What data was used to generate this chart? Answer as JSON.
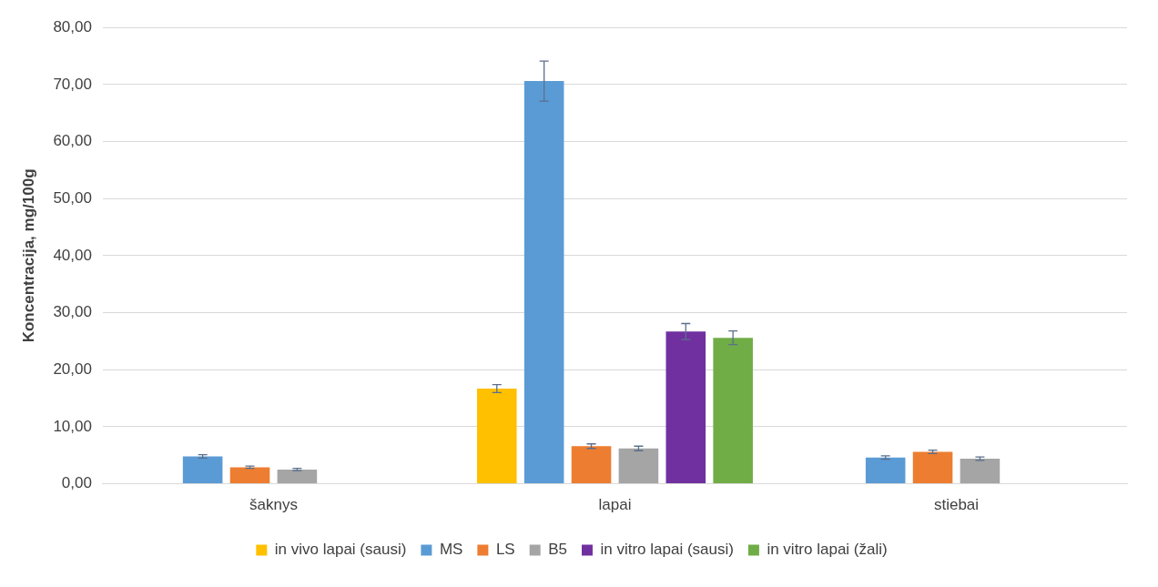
{
  "chart_data": {
    "type": "bar",
    "ylabel": "Koncentracija, mg/100g",
    "categories": [
      "šaknys",
      "lapai",
      "stiebai"
    ],
    "series": [
      {
        "name": "in vivo lapai (sausi)",
        "color": "#ffc000",
        "values": [
          null,
          16.7,
          null
        ],
        "errors": [
          null,
          0.7,
          null
        ]
      },
      {
        "name": "MS",
        "color": "#5b9bd5",
        "values": [
          4.8,
          70.6,
          4.6
        ],
        "errors": [
          0.3,
          3.5,
          0.3
        ]
      },
      {
        "name": "LS",
        "color": "#ed7d31",
        "values": [
          2.9,
          6.6,
          5.6
        ],
        "errors": [
          0.2,
          0.4,
          0.3
        ]
      },
      {
        "name": "B5",
        "color": "#a5a5a5",
        "values": [
          2.5,
          6.2,
          4.4
        ],
        "errors": [
          0.2,
          0.4,
          0.3
        ]
      },
      {
        "name": "in vitro lapai (sausi)",
        "color": "#7030a0",
        "values": [
          null,
          26.7,
          null
        ],
        "errors": [
          null,
          1.4,
          null
        ]
      },
      {
        "name": "in vitro lapai (žali)",
        "color": "#70ad47",
        "values": [
          null,
          25.6,
          null
        ],
        "errors": [
          null,
          1.2,
          null
        ]
      }
    ],
    "ylim": [
      0,
      80
    ],
    "yticks": [
      {
        "value": 0,
        "label": "0,00"
      },
      {
        "value": 10,
        "label": "10,00"
      },
      {
        "value": 20,
        "label": "20,00"
      },
      {
        "value": 30,
        "label": "30,00"
      },
      {
        "value": 40,
        "label": "40,00"
      },
      {
        "value": 50,
        "label": "50,00"
      },
      {
        "value": 60,
        "label": "60,00"
      },
      {
        "value": 70,
        "label": "70,00"
      },
      {
        "value": 80,
        "label": "80,00"
      }
    ],
    "grid": "y",
    "legend": "bottom"
  }
}
